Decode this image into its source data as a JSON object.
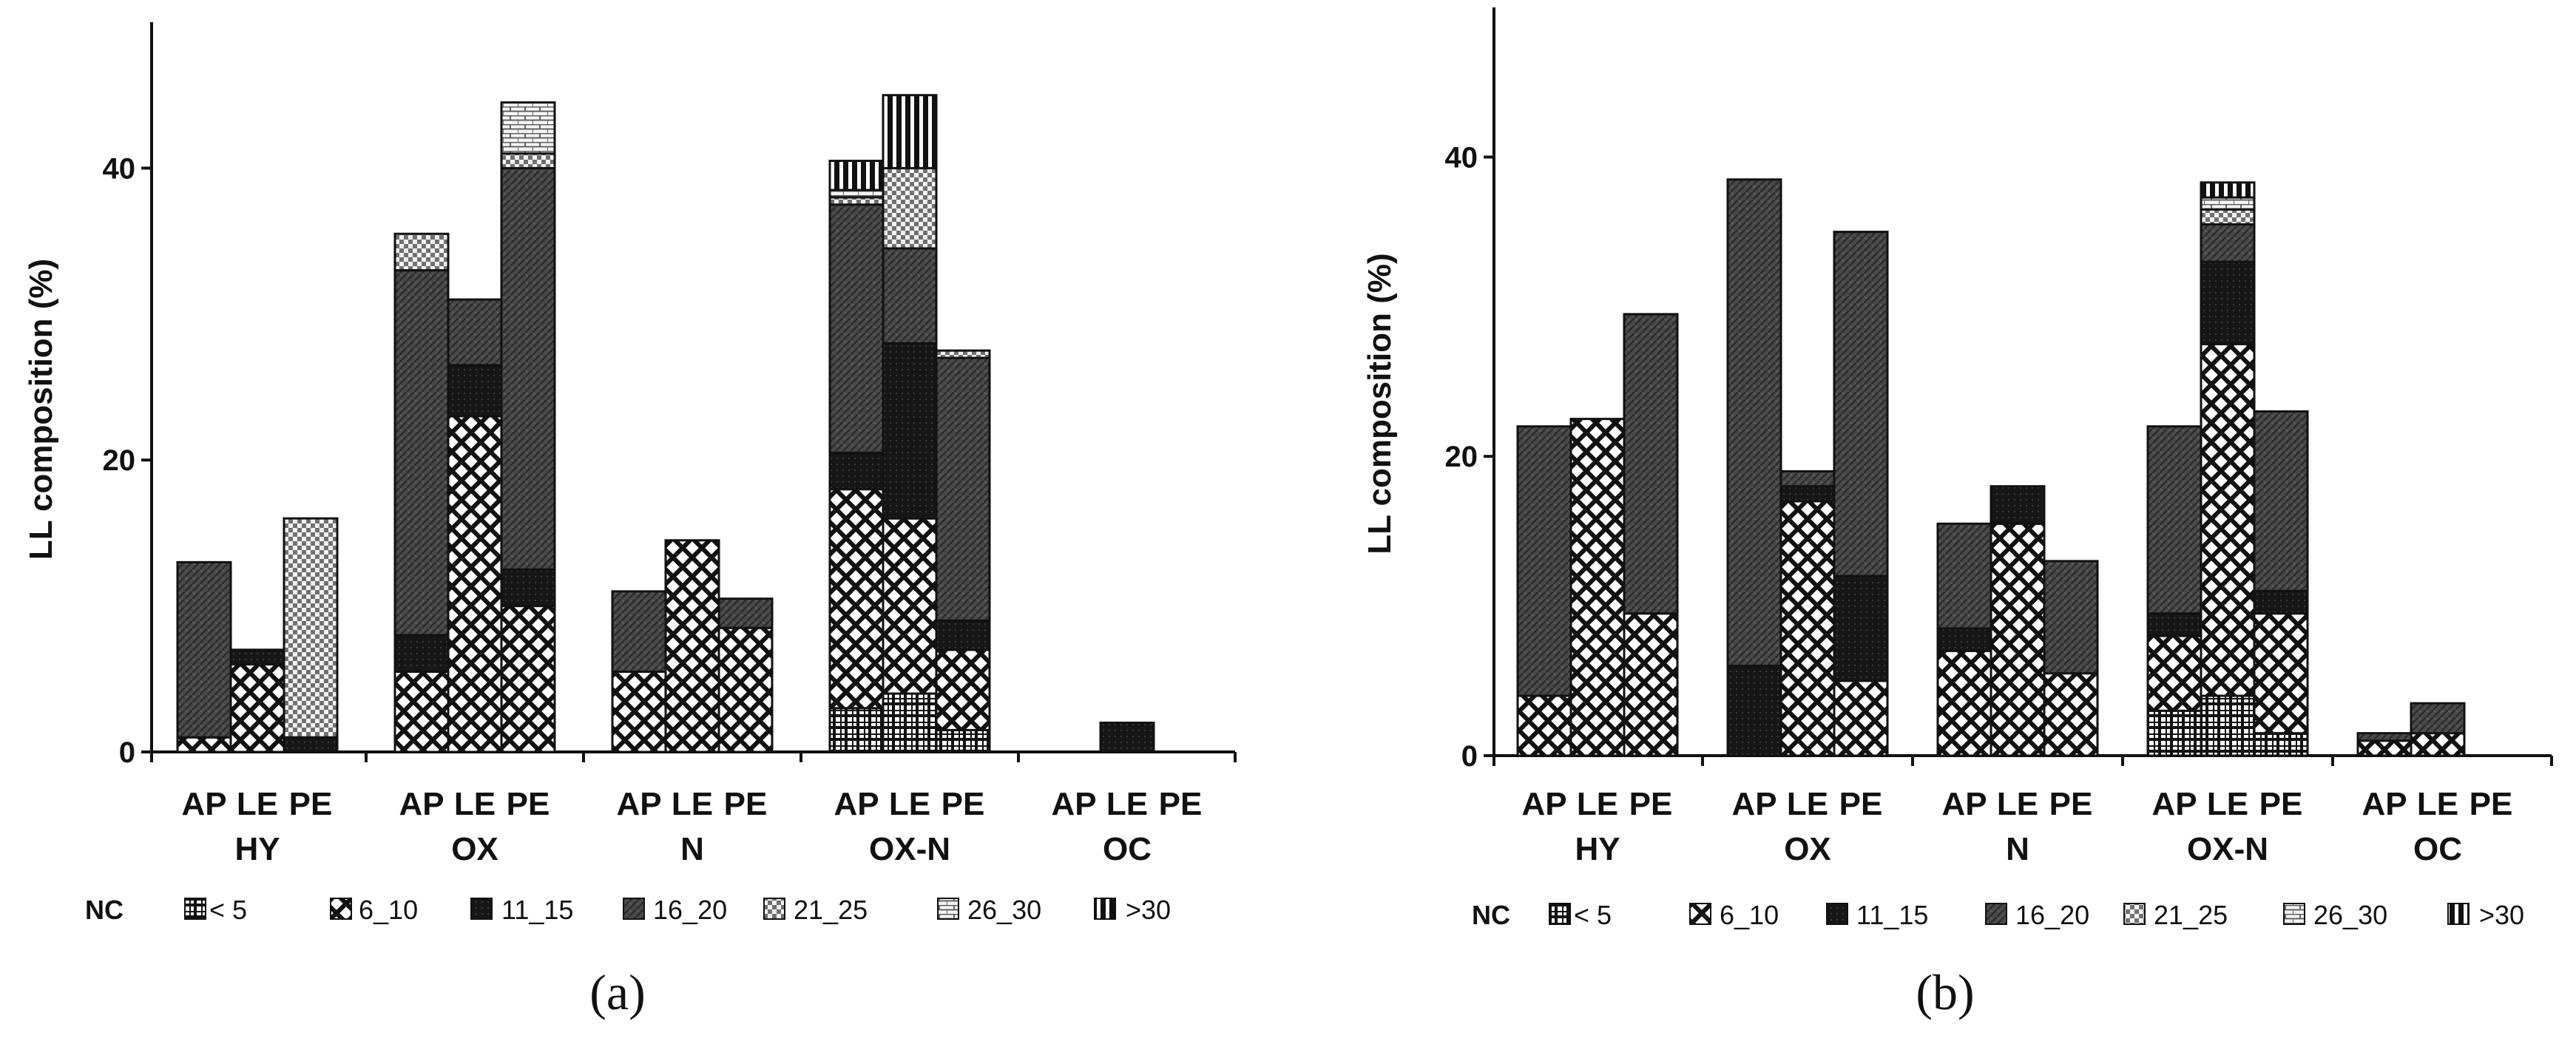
{
  "chart_data": [
    {
      "type": "bar",
      "stacked": true,
      "panel_label": "(a)",
      "ylabel": "LL composition (%)",
      "ylim": [
        0,
        50
      ],
      "yticks": [
        0,
        20,
        40
      ],
      "categories": [
        "AP",
        "LE",
        "PE",
        "AP",
        "LE",
        "PE",
        "AP",
        "LE",
        "PE",
        "AP",
        "LE",
        "PE",
        "AP",
        "LE",
        "PE"
      ],
      "groups": [
        {
          "label": "HY",
          "categories": [
            "AP",
            "LE",
            "PE"
          ]
        },
        {
          "label": "OX",
          "categories": [
            "AP",
            "LE",
            "PE"
          ]
        },
        {
          "label": "N",
          "categories": [
            "AP",
            "LE",
            "PE"
          ]
        },
        {
          "label": "OX-N",
          "categories": [
            "AP",
            "LE",
            "PE"
          ]
        },
        {
          "label": "OC",
          "categories": [
            "AP",
            "LE",
            "PE"
          ]
        }
      ],
      "series": [
        {
          "name": "< 5",
          "values": [
            0,
            0,
            0,
            0,
            0,
            0,
            0,
            0,
            0,
            3,
            4,
            1.5,
            0,
            0,
            0
          ]
        },
        {
          "name": "6_10",
          "values": [
            1,
            6,
            0,
            5.5,
            23,
            10,
            5.5,
            14.5,
            8.5,
            15,
            12,
            5.5,
            0,
            0,
            0
          ]
        },
        {
          "name": "11_15",
          "values": [
            0,
            1,
            1,
            2.5,
            3.5,
            2.5,
            0,
            0,
            0,
            2.5,
            12,
            2,
            0,
            2,
            0
          ]
        },
        {
          "name": "16_20",
          "values": [
            12,
            0,
            0,
            25,
            4.5,
            27.5,
            5.5,
            0,
            2,
            17,
            6.5,
            18,
            0,
            0,
            0
          ]
        },
        {
          "name": "21_25",
          "values": [
            0,
            0,
            15,
            2.5,
            0,
            1,
            0,
            0,
            0,
            0.5,
            5.5,
            0.5,
            0,
            0,
            0
          ]
        },
        {
          "name": "26_30",
          "values": [
            0,
            0,
            0,
            0,
            0,
            3.5,
            0,
            0,
            0,
            0.5,
            0,
            0,
            0,
            0,
            0
          ]
        },
        {
          "name": ">30",
          "values": [
            0,
            0,
            0,
            0,
            0,
            0,
            0,
            0,
            0,
            2,
            5,
            0,
            0,
            0,
            0
          ]
        }
      ],
      "legend": {
        "title": "NC",
        "placement": "bottom"
      }
    },
    {
      "type": "bar",
      "stacked": true,
      "panel_label": "(b)",
      "ylabel": "LL composition (%)",
      "ylim": [
        0,
        50
      ],
      "yticks": [
        0,
        20,
        40
      ],
      "categories": [
        "AP",
        "LE",
        "PE",
        "AP",
        "LE",
        "PE",
        "AP",
        "LE",
        "PE",
        "AP",
        "LE",
        "PE",
        "AP",
        "LE",
        "PE"
      ],
      "groups": [
        {
          "label": "HY",
          "categories": [
            "AP",
            "LE",
            "PE"
          ]
        },
        {
          "label": "OX",
          "categories": [
            "AP",
            "LE",
            "PE"
          ]
        },
        {
          "label": "N",
          "categories": [
            "AP",
            "LE",
            "PE"
          ]
        },
        {
          "label": "OX-N",
          "categories": [
            "AP",
            "LE",
            "PE"
          ]
        },
        {
          "label": "OC",
          "categories": [
            "AP",
            "LE",
            "PE"
          ]
        }
      ],
      "series": [
        {
          "name": "< 5",
          "values": [
            0,
            0,
            0,
            0,
            0,
            0,
            0,
            0,
            0,
            3,
            4,
            1.5,
            0,
            0,
            0
          ]
        },
        {
          "name": "6_10",
          "values": [
            4,
            22.5,
            9.5,
            0,
            17,
            5,
            7,
            15.5,
            5.5,
            5,
            23.5,
            8,
            1,
            1.5,
            0
          ]
        },
        {
          "name": "11_15",
          "values": [
            0,
            0,
            0,
            6,
            1,
            7,
            1.5,
            2.5,
            0,
            1.5,
            5.5,
            1.5,
            0,
            0,
            0
          ]
        },
        {
          "name": "16_20",
          "values": [
            18,
            0,
            20,
            32.5,
            1,
            23,
            7,
            0,
            7.5,
            12.5,
            2.5,
            12,
            0.5,
            2,
            0
          ]
        },
        {
          "name": "21_25",
          "values": [
            0,
            0,
            0,
            0,
            0,
            0,
            0,
            0,
            0,
            0,
            1,
            0,
            0,
            0,
            0
          ]
        },
        {
          "name": "26_30",
          "values": [
            0,
            0,
            0,
            0,
            0,
            0,
            0,
            0,
            0,
            0,
            0.8,
            0,
            0,
            0,
            0
          ]
        },
        {
          "name": ">30",
          "values": [
            0,
            0,
            0,
            0,
            0,
            0,
            0,
            0,
            0,
            0,
            1,
            0,
            0,
            0,
            0
          ]
        }
      ],
      "legend": {
        "title": "NC",
        "placement": "bottom"
      }
    }
  ]
}
